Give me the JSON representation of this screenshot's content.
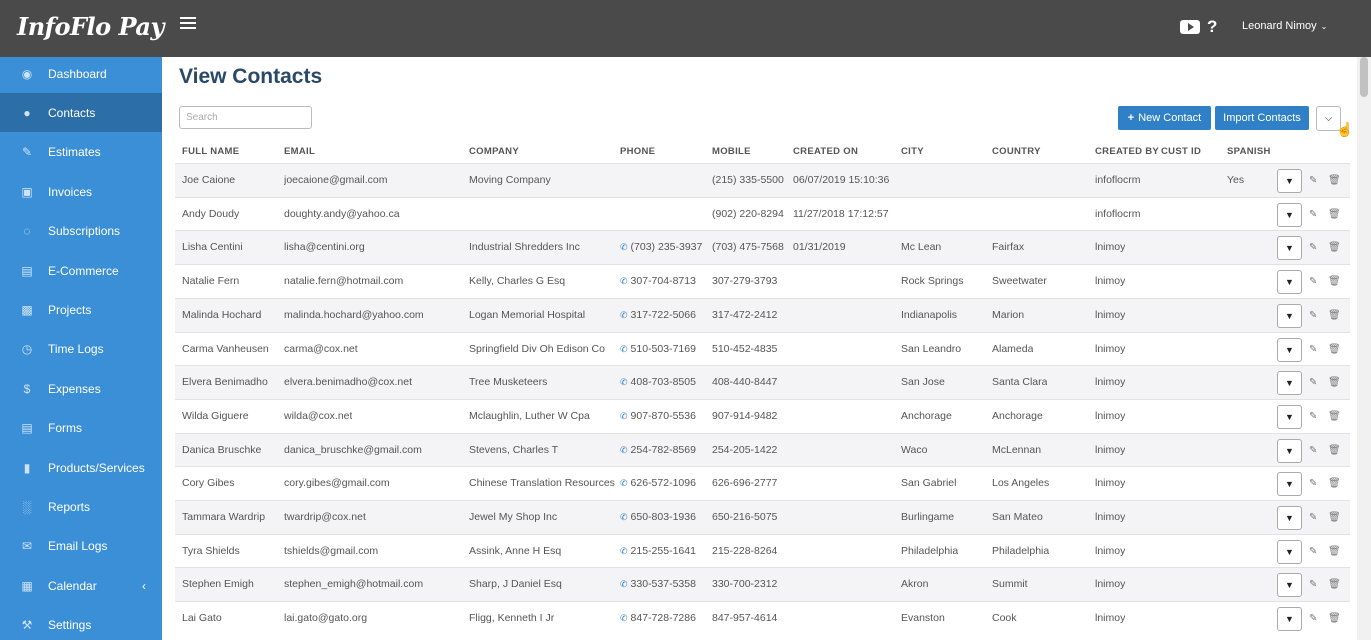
{
  "brand": {
    "logo_text": "InfoFlo Pay"
  },
  "header": {
    "help_label": "?",
    "user_name": "Leonard Nimoy"
  },
  "sidebar": {
    "items": [
      {
        "label": "Dashboard",
        "icon": "palette-icon"
      },
      {
        "label": "Contacts",
        "icon": "user-icon",
        "active": true
      },
      {
        "label": "Estimates",
        "icon": "pencil-icon"
      },
      {
        "label": "Invoices",
        "icon": "money-icon"
      },
      {
        "label": "Subscriptions",
        "icon": "spinner-icon"
      },
      {
        "label": "E-Commerce",
        "icon": "cart-icon"
      },
      {
        "label": "Projects",
        "icon": "briefcase-icon"
      },
      {
        "label": "Time Logs",
        "icon": "clock-icon"
      },
      {
        "label": "Expenses",
        "icon": "dollar-icon"
      },
      {
        "label": "Forms",
        "icon": "clipboard-icon"
      },
      {
        "label": "Products/Services",
        "icon": "truck-icon"
      },
      {
        "label": "Reports",
        "icon": "bar-chart-icon"
      },
      {
        "label": "Email Logs",
        "icon": "envelope-icon"
      },
      {
        "label": "Calendar",
        "icon": "calendar-icon"
      },
      {
        "label": "Settings",
        "icon": "wrench-icon"
      }
    ]
  },
  "main": {
    "title": "View Contacts",
    "search_placeholder": "Search",
    "new_contact_label": "New Contact",
    "new_contact_plus": "+",
    "import_label": "Import Contacts"
  },
  "table": {
    "columns": [
      "FULL NAME",
      "EMAIL",
      "COMPANY",
      "PHONE",
      "MOBILE",
      "CREATED ON",
      "CITY",
      "COUNTRY",
      "CREATED BY",
      "CUST ID",
      "SPANISH"
    ],
    "rows": [
      {
        "name": "Joe Caione",
        "email": "joecaione@gmail.com",
        "company": "Moving Company",
        "phone": "",
        "mobile": "(215) 335-5500",
        "created": "06/07/2019 15:10:36",
        "city": "",
        "country": "",
        "by": "infoflocrm",
        "cust": "",
        "spanish": "Yes"
      },
      {
        "name": "Andy Doudy",
        "email": "doughty.andy@yahoo.ca",
        "company": "",
        "phone": "",
        "mobile": "(902) 220-8294",
        "created": "11/27/2018 17:12:57",
        "city": "",
        "country": "",
        "by": "infoflocrm",
        "cust": "",
        "spanish": ""
      },
      {
        "name": "Lisha Centini",
        "email": "lisha@centini.org",
        "company": "Industrial Shredders Inc",
        "phone": "(703) 235-3937",
        "mobile": "(703) 475-7568",
        "created": "01/31/2019",
        "city": "Mc Lean",
        "country": "Fairfax",
        "by": "lnimoy",
        "cust": "",
        "spanish": ""
      },
      {
        "name": "Natalie Fern",
        "email": "natalie.fern@hotmail.com",
        "company": "Kelly, Charles G Esq",
        "phone": "307-704-8713",
        "mobile": "307-279-3793",
        "created": "",
        "city": "Rock Springs",
        "country": "Sweetwater",
        "by": "lnimoy",
        "cust": "",
        "spanish": ""
      },
      {
        "name": "Malinda Hochard",
        "email": "malinda.hochard@yahoo.com",
        "company": "Logan Memorial Hospital",
        "phone": "317-722-5066",
        "mobile": "317-472-2412",
        "created": "",
        "city": "Indianapolis",
        "country": "Marion",
        "by": "lnimoy",
        "cust": "",
        "spanish": ""
      },
      {
        "name": "Carma Vanheusen",
        "email": "carma@cox.net",
        "company": "Springfield Div Oh Edison Co",
        "phone": "510-503-7169",
        "mobile": "510-452-4835",
        "created": "",
        "city": "San Leandro",
        "country": "Alameda",
        "by": "lnimoy",
        "cust": "",
        "spanish": ""
      },
      {
        "name": "Elvera Benimadho",
        "email": "elvera.benimadho@cox.net",
        "company": "Tree Musketeers",
        "phone": "408-703-8505",
        "mobile": "408-440-8447",
        "created": "",
        "city": "San Jose",
        "country": "Santa Clara",
        "by": "lnimoy",
        "cust": "",
        "spanish": ""
      },
      {
        "name": "Wilda Giguere",
        "email": "wilda@cox.net",
        "company": "Mclaughlin, Luther W Cpa",
        "phone": "907-870-5536",
        "mobile": "907-914-9482",
        "created": "",
        "city": "Anchorage",
        "country": "Anchorage",
        "by": "lnimoy",
        "cust": "",
        "spanish": ""
      },
      {
        "name": "Danica Bruschke",
        "email": "danica_bruschke@gmail.com",
        "company": "Stevens, Charles T",
        "phone": "254-782-8569",
        "mobile": "254-205-1422",
        "created": "",
        "city": "Waco",
        "country": "McLennan",
        "by": "lnimoy",
        "cust": "",
        "spanish": ""
      },
      {
        "name": "Cory Gibes",
        "email": "cory.gibes@gmail.com",
        "company": "Chinese Translation Resources",
        "phone": "626-572-1096",
        "mobile": "626-696-2777",
        "created": "",
        "city": "San Gabriel",
        "country": "Los Angeles",
        "by": "lnimoy",
        "cust": "",
        "spanish": ""
      },
      {
        "name": "Tammara Wardrip",
        "email": "twardrip@cox.net",
        "company": "Jewel My Shop Inc",
        "phone": "650-803-1936",
        "mobile": "650-216-5075",
        "created": "",
        "city": "Burlingame",
        "country": "San Mateo",
        "by": "lnimoy",
        "cust": "",
        "spanish": ""
      },
      {
        "name": "Tyra Shields",
        "email": "tshields@gmail.com",
        "company": "Assink, Anne H Esq",
        "phone": "215-255-1641",
        "mobile": "215-228-8264",
        "created": "",
        "city": "Philadelphia",
        "country": "Philadelphia",
        "by": "lnimoy",
        "cust": "",
        "spanish": ""
      },
      {
        "name": "Stephen Emigh",
        "email": "stephen_emigh@hotmail.com",
        "company": "Sharp, J Daniel Esq",
        "phone": "330-537-5358",
        "mobile": "330-700-2312",
        "created": "",
        "city": "Akron",
        "country": "Summit",
        "by": "lnimoy",
        "cust": "",
        "spanish": ""
      },
      {
        "name": "Lai Gato",
        "email": "lai.gato@gato.org",
        "company": "Fligg, Kenneth I Jr",
        "phone": "847-728-7286",
        "mobile": "847-957-4614",
        "created": "",
        "city": "Evanston",
        "country": "Cook",
        "by": "lnimoy",
        "cust": "",
        "spanish": ""
      }
    ]
  },
  "colors": {
    "sidebar": "#3b8fd6",
    "sidebar_active": "#2c6ea7",
    "topbar": "#4a4a4a",
    "accent": "#2f80c6",
    "title": "#2a4868"
  }
}
